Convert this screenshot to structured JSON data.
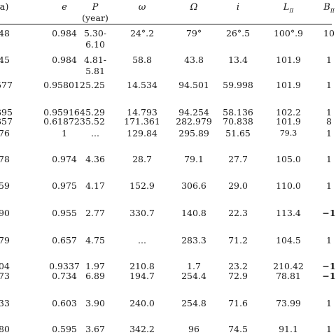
{
  "table": {
    "headers": [
      {
        "label": "a)",
        "sub": ""
      },
      {
        "label": "e",
        "sub": ""
      },
      {
        "label": "P",
        "sub": "(year)"
      },
      {
        "label": "ω",
        "sub": ""
      },
      {
        "label": "Ω",
        "sub": ""
      },
      {
        "label": "i",
        "sub": ""
      },
      {
        "label": "Lπ",
        "sub": ""
      },
      {
        "label": "Bπ",
        "sub": ""
      }
    ],
    "rows": [
      {
        "a": "48",
        "e": "0.984",
        "P": "5.30-",
        "P2": "6.10",
        "w": "24°.2",
        "O": "79°",
        "i": "26°.5",
        "L": "100°.9",
        "B": "10"
      },
      {
        "a": "45",
        "e": "0.984",
        "P": "4.81-",
        "P2": "5.81",
        "w": "58.8",
        "O": "43.8",
        "i": "13.4",
        "L": "101.9",
        "B": "1"
      },
      {
        "a": "577",
        "e": "0.958012",
        "P": "5.25",
        "P2": "",
        "w": "14.534",
        "O": "94.501",
        "i": "59.998",
        "L": "101.9",
        "B": "1"
      },
      {
        "a": "395",
        "e": "0.959164",
        "P": "5.29",
        "P2": "",
        "w": "14.793",
        "O": "94.254",
        "i": "58.136",
        "L": "102.2",
        "B": "1"
      },
      {
        "a": "357",
        "e": "0.618723",
        "P": "5.52",
        "P2": "",
        "w": "171.361",
        "O": "282.979",
        "i": "70.838",
        "L": "101.9",
        "B": "8"
      },
      {
        "a": "76",
        "e": "1",
        "P": "...",
        "P2": "",
        "w": "129.84",
        "O": "295.89",
        "i": "51.65",
        "L": "79.3",
        "B": "1"
      },
      {
        "a": "78",
        "e": "0.974",
        "P": "4.36",
        "P2": "",
        "w": "28.7",
        "O": "79.1",
        "i": "27.7",
        "L": "105.0",
        "B": "1"
      },
      {
        "a": "59",
        "e": "0.975",
        "P": "4.17",
        "P2": "",
        "w": "152.9",
        "O": "306.6",
        "i": "29.0",
        "L": "110.0",
        "B": "1"
      },
      {
        "a": "90",
        "e": "0.955",
        "P": "2.77",
        "P2": "",
        "w": "330.7",
        "O": "140.8",
        "i": "22.3",
        "L": "113.4",
        "B": "−1"
      },
      {
        "a": "79",
        "e": "0.657",
        "P": "4.75",
        "P2": "",
        "w": "...",
        "O": "283.3",
        "i": "71.2",
        "L": "104.5",
        "B": "1"
      },
      {
        "a": "04",
        "e": "0.9337",
        "P": "1.97",
        "P2": "",
        "w": "210.8",
        "O": "1.7",
        "i": "23.2",
        "L": "210.42",
        "B": "−1"
      },
      {
        "a": "73",
        "e": "0.734",
        "P": "6.89",
        "P2": "",
        "w": "194.7",
        "O": "254.4",
        "i": "72.9",
        "L": "78.81",
        "B": "−1"
      },
      {
        "a": "33",
        "e": "0.603",
        "P": "3.90",
        "P2": "",
        "w": "240.0",
        "O": "254.8",
        "i": "71.6",
        "L": "73.99",
        "B": "1"
      },
      {
        "a": "80",
        "e": "0.595",
        "P": "3.67",
        "P2": "",
        "w": "342.2",
        "O": "96",
        "i": "74.5",
        "L": "91.1",
        "B": "1"
      }
    ]
  }
}
